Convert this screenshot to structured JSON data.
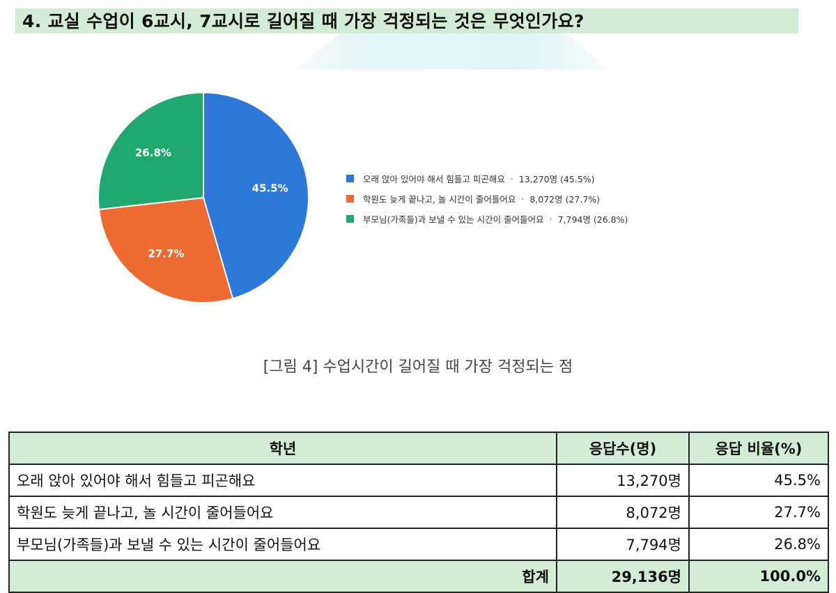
{
  "question": {
    "title": "4. 교실 수업이 6교시, 7교시로 길어질 때 가장 걱정되는 것은 무엇인가요?"
  },
  "chart_data": {
    "type": "pie",
    "categories": [
      "오래 앉아 있어야 해서 힘들고 피곤해요",
      "학원도 늦게 끝나고, 놀 시간이 줄어들어요",
      "부모님(가족들)과 보낼 수 있는 시간이 줄어들어요"
    ],
    "values": [
      45.5,
      27.7,
      26.8
    ],
    "counts": [
      "13,270명",
      "8,072명",
      "7,794명"
    ],
    "slice_labels": [
      "45.5%",
      "27.7%",
      "26.8%"
    ],
    "legend_values": [
      "13,270명 (45.5%)",
      "8,072명 (27.7%)",
      "7,794명 (26.8%)"
    ],
    "colors": [
      "#2e78d8",
      "#ee6a33",
      "#20a86e"
    ],
    "legend_position": "right"
  },
  "caption": "[그림 4] 수업시간이 길어질 때 가장 걱정되는 점",
  "table": {
    "headers": [
      "학년",
      "응답수(명)",
      "응답 비율(%)"
    ],
    "rows": [
      {
        "label": "오래 앉아 있어야 해서 힘들고 피곤해요",
        "count": "13,270명",
        "ratio": "45.5%"
      },
      {
        "label": "학원도 늦게 끝나고, 놀 시간이 줄어들어요",
        "count": "8,072명",
        "ratio": "27.7%"
      },
      {
        "label": "부모님(가족들)과 보낼 수 있는 시간이 줄어들어요",
        "count": "7,794명",
        "ratio": "26.8%"
      }
    ],
    "total": {
      "label": "합계",
      "count": "29,136명",
      "ratio": "100.0%"
    }
  }
}
